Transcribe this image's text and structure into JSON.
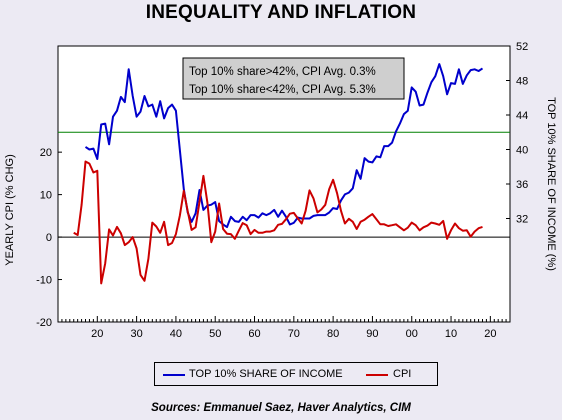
{
  "chart_data": {
    "type": "line",
    "title": "INEQUALITY AND INFLATION",
    "ylabel_left": "YEARLY CPI (% CHG)",
    "ylabel_right": "TOP 10% SHARE OF INCOME (%)",
    "xlabel": "",
    "x_unit": "year",
    "x_tick_labels": [
      "20",
      "30",
      "40",
      "50",
      "60",
      "70",
      "80",
      "90",
      "00",
      "10",
      "20"
    ],
    "ylim_left": [
      -20,
      45
    ],
    "yticks_left": [
      -20,
      -10,
      0,
      10,
      20
    ],
    "ylim_right": [
      20,
      52
    ],
    "yticks_right": [
      32,
      36,
      40,
      44,
      48,
      52
    ],
    "reference_lines": [
      {
        "axis": "right",
        "value": 42,
        "color": "#008000"
      },
      {
        "axis": "left",
        "value": 0,
        "color": "#000000"
      }
    ],
    "annotation": [
      "Top 10% share>42%, CPI Avg. 0.3%",
      "Top 10% share<42%, CPI Avg. 5.3%"
    ],
    "legend_position": "bottom",
    "series": [
      {
        "name": "TOP 10% SHARE OF INCOME",
        "axis": "right",
        "color": "#0000cc",
        "x": [
          1917,
          1918,
          1919,
          1920,
          1921,
          1922,
          1923,
          1924,
          1925,
          1926,
          1927,
          1928,
          1929,
          1930,
          1931,
          1932,
          1933,
          1934,
          1935,
          1936,
          1937,
          1938,
          1939,
          1940,
          1941,
          1942,
          1943,
          1944,
          1945,
          1946,
          1947,
          1948,
          1949,
          1950,
          1951,
          1952,
          1953,
          1954,
          1955,
          1956,
          1957,
          1958,
          1959,
          1960,
          1961,
          1962,
          1963,
          1964,
          1965,
          1966,
          1967,
          1968,
          1969,
          1970,
          1971,
          1972,
          1973,
          1974,
          1975,
          1976,
          1977,
          1978,
          1979,
          1980,
          1981,
          1982,
          1983,
          1984,
          1985,
          1986,
          1987,
          1988,
          1989,
          1990,
          1991,
          1992,
          1993,
          1994,
          1995,
          1996,
          1997,
          1998,
          1999,
          2000,
          2001,
          2002,
          2003,
          2004,
          2005,
          2006,
          2007,
          2008,
          2009,
          2010,
          2011,
          2012,
          2013,
          2014,
          2015,
          2016,
          2017,
          2018
        ],
        "values": [
          40.3,
          40.0,
          40.1,
          38.9,
          42.9,
          43.0,
          40.6,
          43.8,
          44.5,
          46.1,
          45.5,
          49.3,
          46.2,
          43.8,
          44.4,
          46.2,
          45.0,
          45.2,
          43.8,
          45.6,
          43.6,
          44.8,
          45.2,
          44.5,
          40.0,
          35.4,
          32.7,
          31.6,
          32.6,
          35.3,
          33.0,
          33.5,
          33.6,
          33.9,
          31.7,
          31.3,
          31.0,
          32.2,
          31.7,
          31.6,
          32.2,
          31.8,
          32.4,
          32.4,
          32.1,
          32.6,
          32.4,
          32.6,
          33.0,
          32.2,
          32.9,
          32.2,
          31.3,
          31.5,
          32.1,
          32.0,
          32.0,
          32.0,
          32.3,
          32.4,
          32.4,
          32.4,
          32.7,
          33.2,
          33.1,
          34.1,
          34.8,
          35.0,
          35.5,
          37.6,
          36.6,
          39.0,
          38.6,
          38.5,
          39.2,
          39.1,
          40.4,
          40.4,
          40.8,
          42.1,
          43.0,
          44.1,
          44.5,
          47.2,
          46.7,
          45.1,
          45.2,
          46.6,
          47.8,
          48.5,
          49.9,
          48.5,
          46.4,
          47.7,
          47.6,
          49.3,
          47.6,
          48.6,
          49.2,
          49.3,
          49.1,
          49.4
        ]
      },
      {
        "name": "CPI",
        "axis": "left",
        "color": "#cc0000",
        "x": [
          1914,
          1915,
          1916,
          1917,
          1918,
          1919,
          1920,
          1921,
          1922,
          1923,
          1924,
          1925,
          1926,
          1927,
          1928,
          1929,
          1930,
          1931,
          1932,
          1933,
          1934,
          1935,
          1936,
          1937,
          1938,
          1939,
          1940,
          1941,
          1942,
          1943,
          1944,
          1945,
          1946,
          1947,
          1948,
          1949,
          1950,
          1951,
          1952,
          1953,
          1954,
          1955,
          1956,
          1957,
          1958,
          1959,
          1960,
          1961,
          1962,
          1963,
          1964,
          1965,
          1966,
          1967,
          1968,
          1969,
          1970,
          1971,
          1972,
          1973,
          1974,
          1975,
          1976,
          1977,
          1978,
          1979,
          1980,
          1981,
          1982,
          1983,
          1984,
          1985,
          1986,
          1987,
          1988,
          1989,
          1990,
          1991,
          1992,
          1993,
          1994,
          1995,
          1996,
          1997,
          1998,
          1999,
          2000,
          2001,
          2002,
          2003,
          2004,
          2005,
          2006,
          2007,
          2008,
          2009,
          2010,
          2011,
          2012,
          2013,
          2014,
          2015,
          2016,
          2017,
          2018
        ],
        "values": [
          1.0,
          0.5,
          7.6,
          17.8,
          17.3,
          15.2,
          15.6,
          -10.9,
          -6.2,
          1.8,
          0.4,
          2.4,
          0.9,
          -1.9,
          -1.2,
          0.0,
          -2.7,
          -8.9,
          -10.3,
          -5.1,
          3.4,
          2.5,
          1.0,
          3.6,
          -1.9,
          -1.4,
          0.7,
          5.0,
          10.9,
          6.1,
          1.7,
          2.3,
          8.3,
          14.4,
          8.1,
          -1.2,
          1.3,
          7.9,
          1.9,
          0.8,
          0.7,
          -0.4,
          1.5,
          3.3,
          2.8,
          0.7,
          1.7,
          1.0,
          1.0,
          1.3,
          1.3,
          1.6,
          2.9,
          3.1,
          4.2,
          5.5,
          5.7,
          4.4,
          3.2,
          6.2,
          11.0,
          9.1,
          5.8,
          6.5,
          7.6,
          11.3,
          13.5,
          10.3,
          6.2,
          3.2,
          4.3,
          3.6,
          1.9,
          3.6,
          4.1,
          4.8,
          5.4,
          4.2,
          3.0,
          3.0,
          2.6,
          2.8,
          3.0,
          2.3,
          1.6,
          2.2,
          3.4,
          2.8,
          1.6,
          2.3,
          2.7,
          3.4,
          3.2,
          2.9,
          3.8,
          -0.4,
          1.6,
          3.2,
          2.1,
          1.5,
          1.6,
          0.1,
          1.3,
          2.1,
          2.4
        ]
      }
    ]
  },
  "sources": "Sources:  Emmanuel Saez, Haver Analytics, CIM"
}
